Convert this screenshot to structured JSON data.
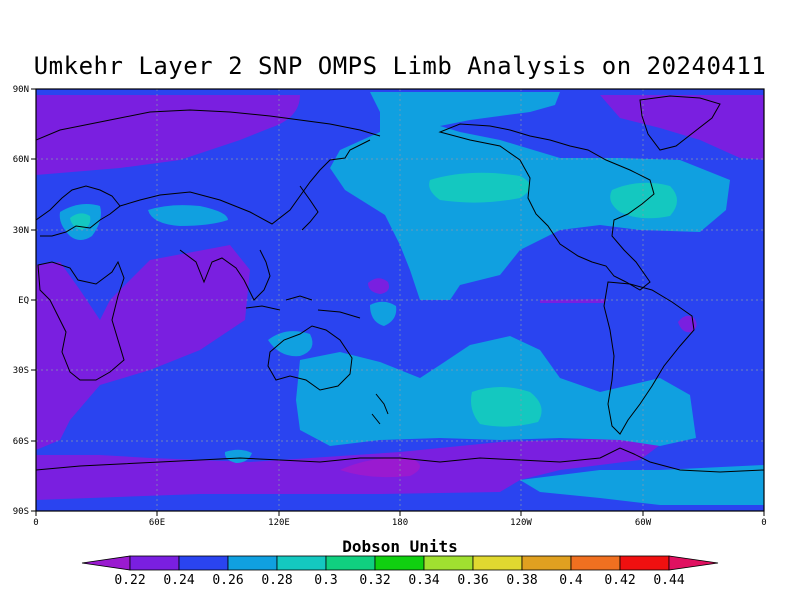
{
  "title": "Umkehr Layer 2 SNP OMPS Limb Analysis on 20240411",
  "map": {
    "y_ticks": [
      "90N",
      "60N",
      "30N",
      "EQ",
      "30S",
      "60S",
      "90S"
    ],
    "x_ticks": [
      "0",
      "60E",
      "120E",
      "180",
      "120W",
      "60W",
      "0"
    ],
    "grid": true,
    "background_level": "0.24-0.26"
  },
  "colorbar": {
    "title": "Dobson Units",
    "labels": [
      "0.22",
      "0.24",
      "0.26",
      "0.28",
      "0.3",
      "0.32",
      "0.34",
      "0.36",
      "0.38",
      "0.4",
      "0.42",
      "0.44"
    ],
    "colors": [
      "#9a1ad0",
      "#7a1fe0",
      "#2a44f0",
      "#10a0e0",
      "#14c8c0",
      "#10d080",
      "#10d010",
      "#a0e030",
      "#e0d830",
      "#e0a020",
      "#f07020",
      "#f01010",
      "#e01060"
    ]
  },
  "colors": {
    "low_0_22": "#7a1fe0",
    "base_0_24": "#2a44f0",
    "mid_0_26": "#10a0e0",
    "high_0_28": "#14c8c0",
    "peak": "#9a1ad0"
  }
}
